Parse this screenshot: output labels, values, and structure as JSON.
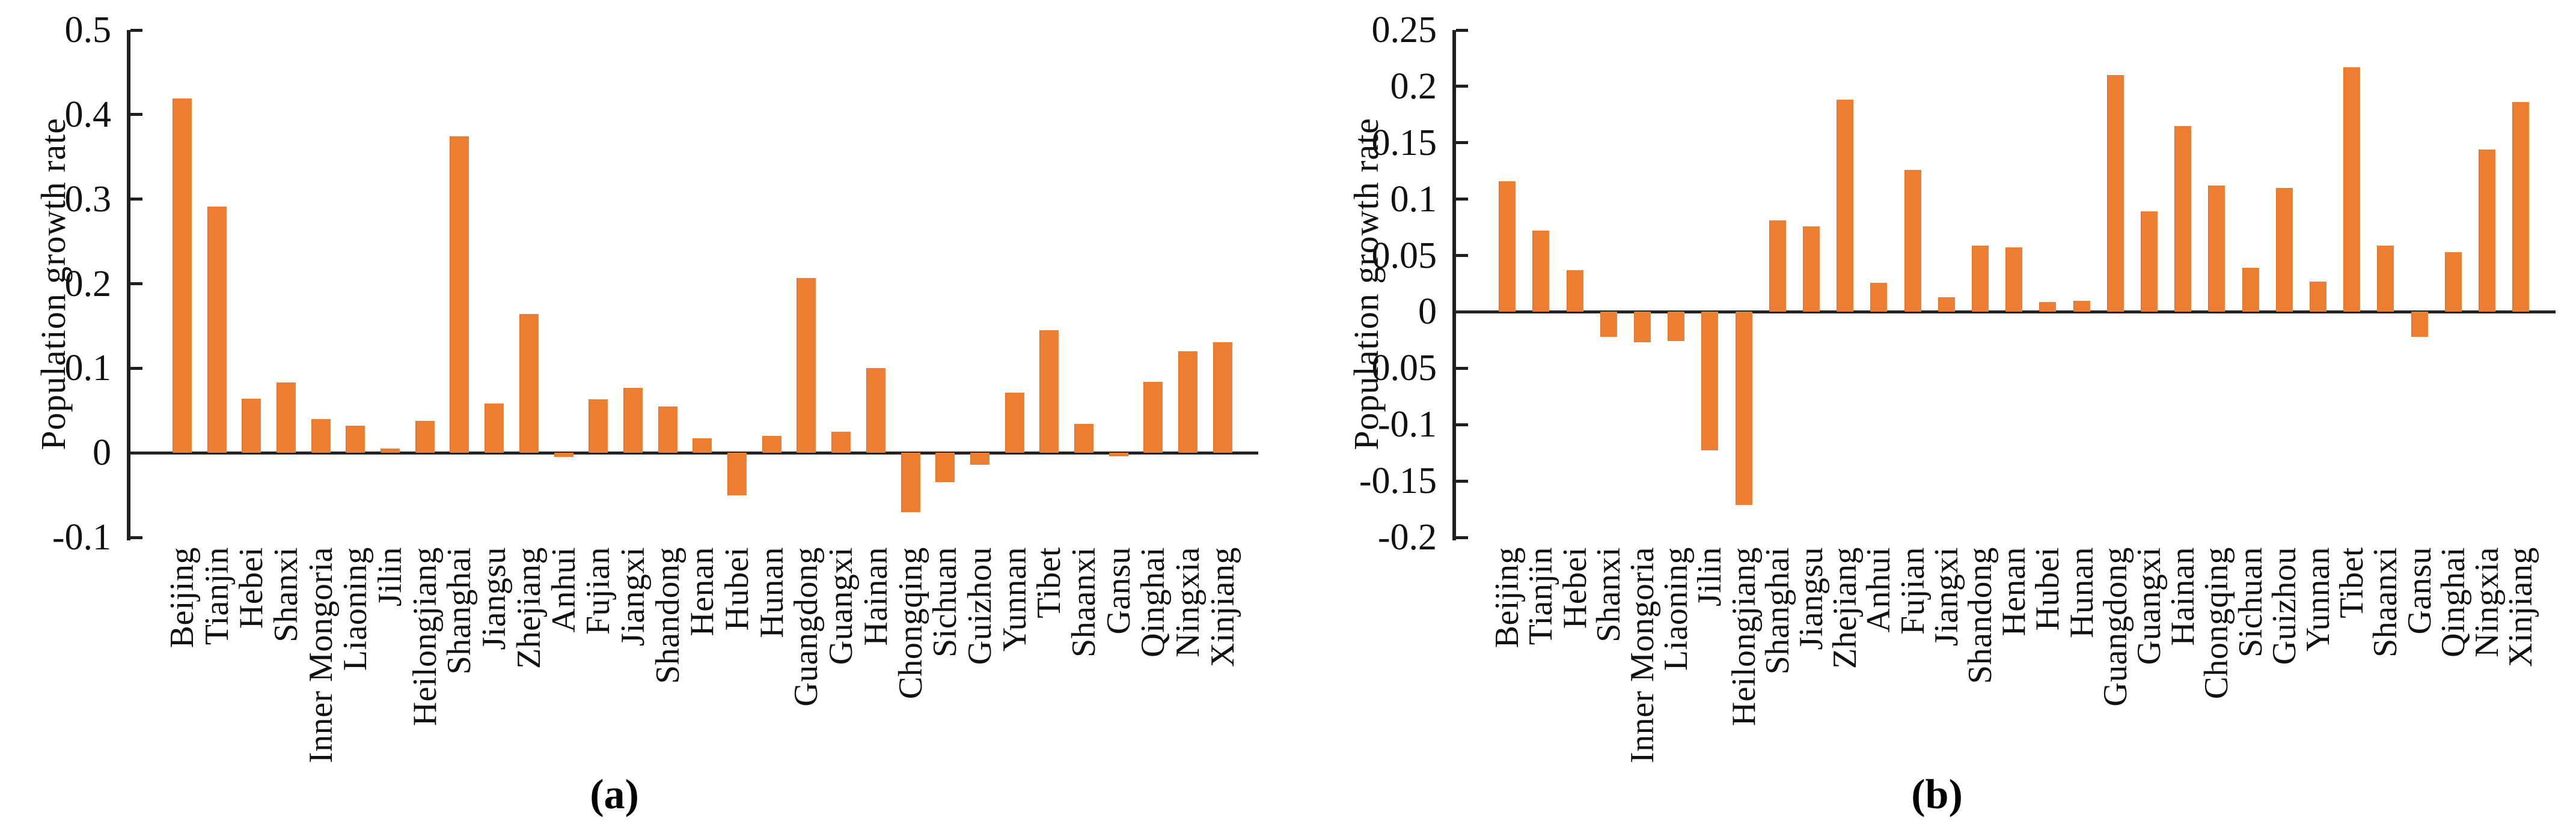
{
  "figure": {
    "background": "#ffffff",
    "bar_color": "#ED7D31",
    "axis_color": "#1f1f1f",
    "text_color": "#111111"
  },
  "chart_data": [
    {
      "id": "a",
      "type": "bar",
      "caption": "(a)",
      "title": "",
      "xlabel": "",
      "ylabel": "Population growth rate",
      "ylim": [
        -0.1,
        0.5
      ],
      "yticks": [
        0.5,
        0.4,
        0.3,
        0.2,
        0.1,
        0,
        -0.1
      ],
      "ytick_labels": [
        "0.5",
        "0.4",
        "0.3",
        "0.2",
        "0.1",
        "0",
        "-0.1"
      ],
      "grid": false,
      "legend": "none",
      "categories": [
        "Beijing",
        "Tianjin",
        "Hebei",
        "Shanxi",
        "Inner Mongoria",
        "Liaoning",
        "Jilin",
        "Heilongjiang",
        "Shanghai",
        "Jiangsu",
        "Zhejiang",
        "Anhui",
        "Fujian",
        "Jiangxi",
        "Shandong",
        "Henan",
        "Hubei",
        "Hunan",
        "Guangdong",
        "Guangxi",
        "Hainan",
        "Chongqing",
        "Sichuan",
        "Guizhou",
        "Yunnan",
        "Tibet",
        "Shaanxi",
        "Gansu",
        "Qinghai",
        "Ningxia",
        "Xinjiang"
      ],
      "values": [
        0.419,
        0.291,
        0.064,
        0.083,
        0.04,
        0.032,
        0.005,
        0.038,
        0.374,
        0.058,
        0.164,
        -0.005,
        0.063,
        0.077,
        0.055,
        0.017,
        -0.05,
        0.02,
        0.207,
        0.025,
        0.1,
        -0.07,
        -0.035,
        -0.014,
        0.071,
        0.145,
        0.034,
        -0.004,
        0.084,
        0.12,
        0.131
      ]
    },
    {
      "id": "b",
      "type": "bar",
      "caption": "(b)",
      "title": "",
      "xlabel": "",
      "ylabel": "Population growth rate",
      "ylim": [
        -0.2,
        0.25
      ],
      "yticks": [
        0.25,
        0.2,
        0.15,
        0.1,
        0.05,
        0,
        -0.05,
        -0.1,
        -0.15,
        -0.2
      ],
      "ytick_labels": [
        "0.25",
        "0.2",
        "0.15",
        "0.1",
        "0.05",
        "0",
        "-0.05",
        "-0.1",
        "-0.15",
        "-0.2"
      ],
      "grid": false,
      "legend": "none",
      "categories": [
        "Beijing",
        "Tianjin",
        "Hebei",
        "Shanxi",
        "Inner Mongoria",
        "Liaoning",
        "Jilin",
        "Heilongjiang",
        "Shanghai",
        "Jiangsu",
        "Zhejiang",
        "Anhui",
        "Fujian",
        "Jiangxi",
        "Shandong",
        "Henan",
        "Hubei",
        "Hunan",
        "Guangdong",
        "Guangxi",
        "Hainan",
        "Chongqing",
        "Sichuan",
        "Guizhou",
        "Yunnan",
        "Tibet",
        "Shaanxi",
        "Gansu",
        "Qinghai",
        "Ningxia",
        "Xinjiang"
      ],
      "values": [
        0.116,
        0.072,
        0.037,
        -0.022,
        -0.027,
        -0.026,
        -0.123,
        -0.171,
        0.081,
        0.076,
        0.188,
        0.026,
        0.126,
        0.013,
        0.059,
        0.057,
        0.009,
        0.01,
        0.21,
        0.089,
        0.165,
        0.112,
        0.039,
        0.11,
        0.027,
        0.217,
        0.059,
        -0.022,
        0.053,
        0.144,
        0.186
      ]
    }
  ]
}
